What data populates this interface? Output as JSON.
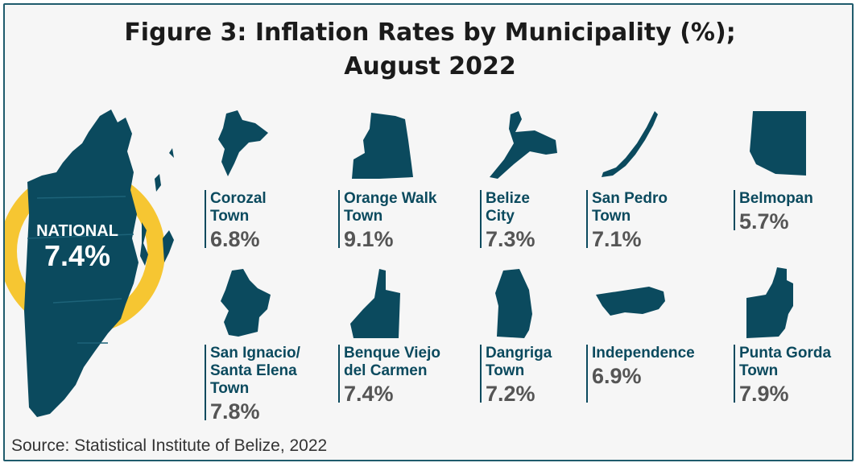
{
  "title": {
    "line1": "Figure 3: Inflation Rates by Municipality (%);",
    "line2": "August 2022"
  },
  "source": "Source: Statistical Institute of Belize, 2022",
  "colors": {
    "map_fill": "#0b4a5e",
    "ring": "#f6c632",
    "value_text": "#555555"
  },
  "national": {
    "label": "NATIONAL",
    "value_text": "7.4%",
    "value": 7.4
  },
  "chart_data": {
    "type": "table",
    "title": "Figure 3: Inflation Rates by Municipality (%); August 2022",
    "unit": "%",
    "items": [
      {
        "name": "Corozal\nTown",
        "value_text": "6.8%",
        "value": 6.8
      },
      {
        "name": "Orange Walk\nTown",
        "value_text": "9.1%",
        "value": 9.1
      },
      {
        "name": "Belize\nCity",
        "value_text": "7.3%",
        "value": 7.3
      },
      {
        "name": "San Pedro\nTown",
        "value_text": "7.1%",
        "value": 7.1
      },
      {
        "name": "Belmopan",
        "value_text": "5.7%",
        "value": 5.7
      },
      {
        "name": "San Ignacio/\nSanta Elena\nTown",
        "value_text": "7.8%",
        "value": 7.8
      },
      {
        "name": "Benque Viejo\ndel Carmen",
        "value_text": "7.4%",
        "value": 7.4
      },
      {
        "name": "Dangriga\nTown",
        "value_text": "7.2%",
        "value": 7.2
      },
      {
        "name": "Independence\n",
        "value_text": "6.9%",
        "value": 6.9
      },
      {
        "name": "Punta Gorda\nTown",
        "value_text": "7.9%",
        "value": 7.9
      }
    ]
  }
}
